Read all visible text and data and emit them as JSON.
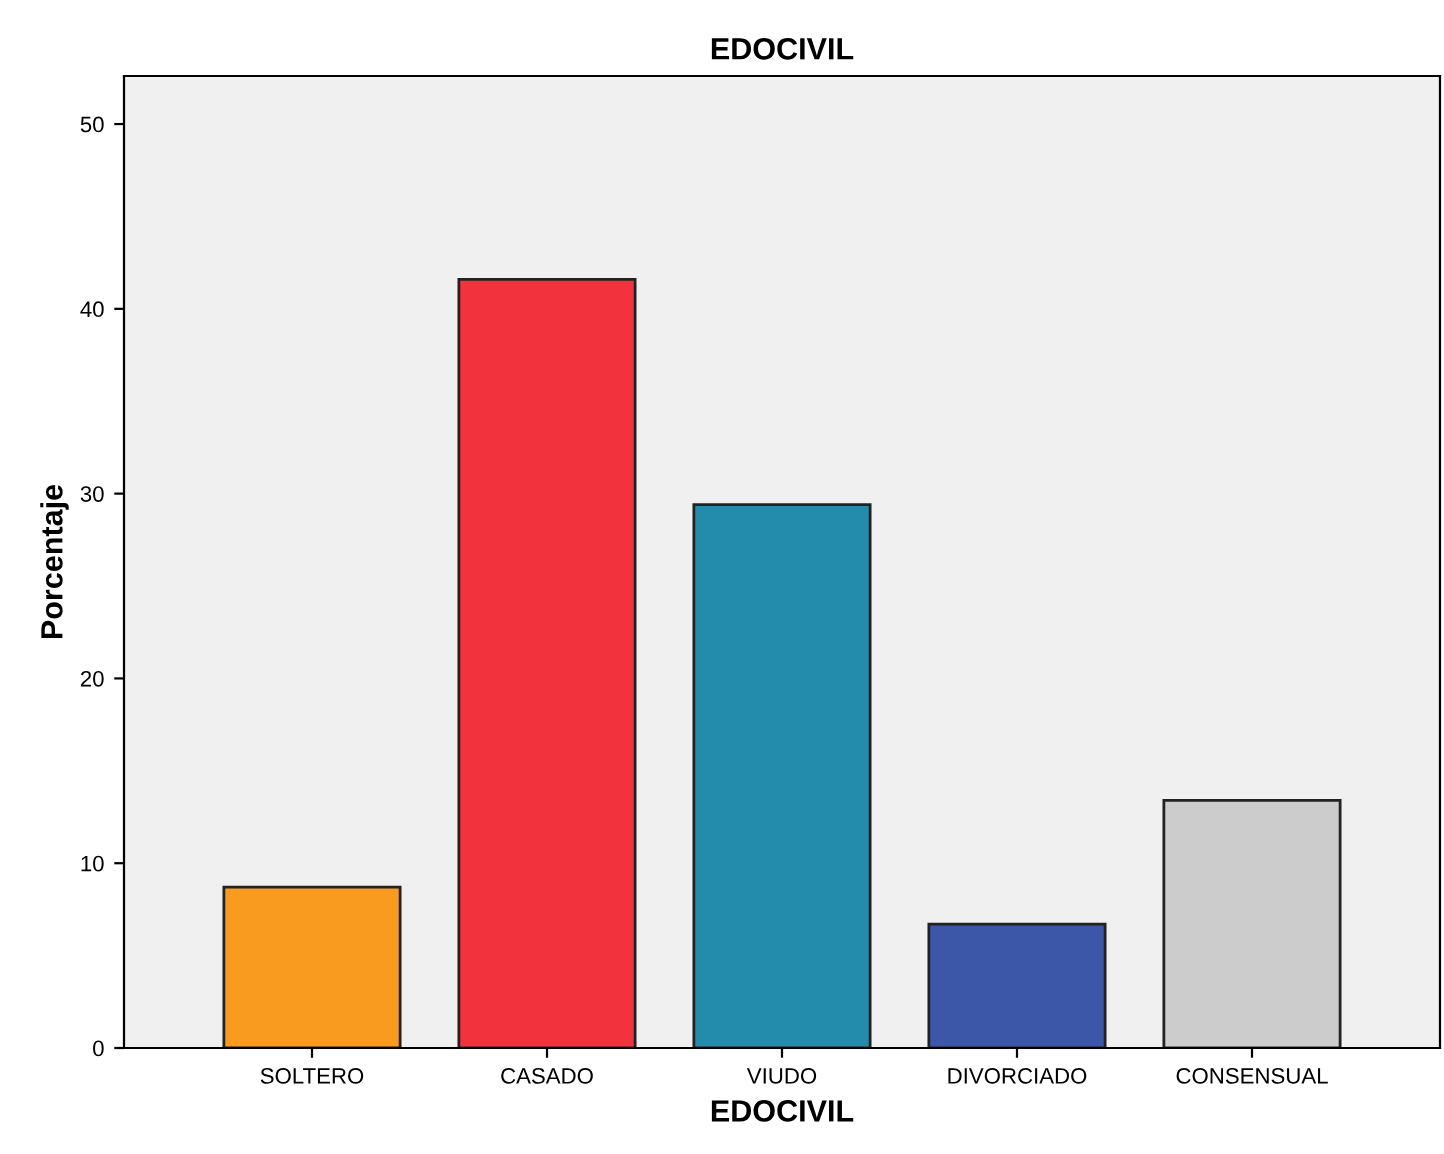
{
  "chart_data": {
    "type": "bar",
    "title": "EDOCIVIL",
    "xlabel": "EDOCIVIL",
    "ylabel": "Porcentaje",
    "categories": [
      "SOLTERO",
      "CASADO",
      "VIUDO",
      "DIVORCIADO",
      "CONSENSUAL"
    ],
    "values": [
      8.7,
      41.6,
      29.4,
      6.7,
      13.4
    ],
    "colors": [
      "#f99b1e",
      "#f2323c",
      "#238bac",
      "#3c56a8",
      "#cccccc"
    ],
    "ylim": [
      0,
      52.6
    ],
    "yticks": [
      0,
      10,
      20,
      30,
      40,
      50
    ],
    "grid": false,
    "legend": false
  }
}
